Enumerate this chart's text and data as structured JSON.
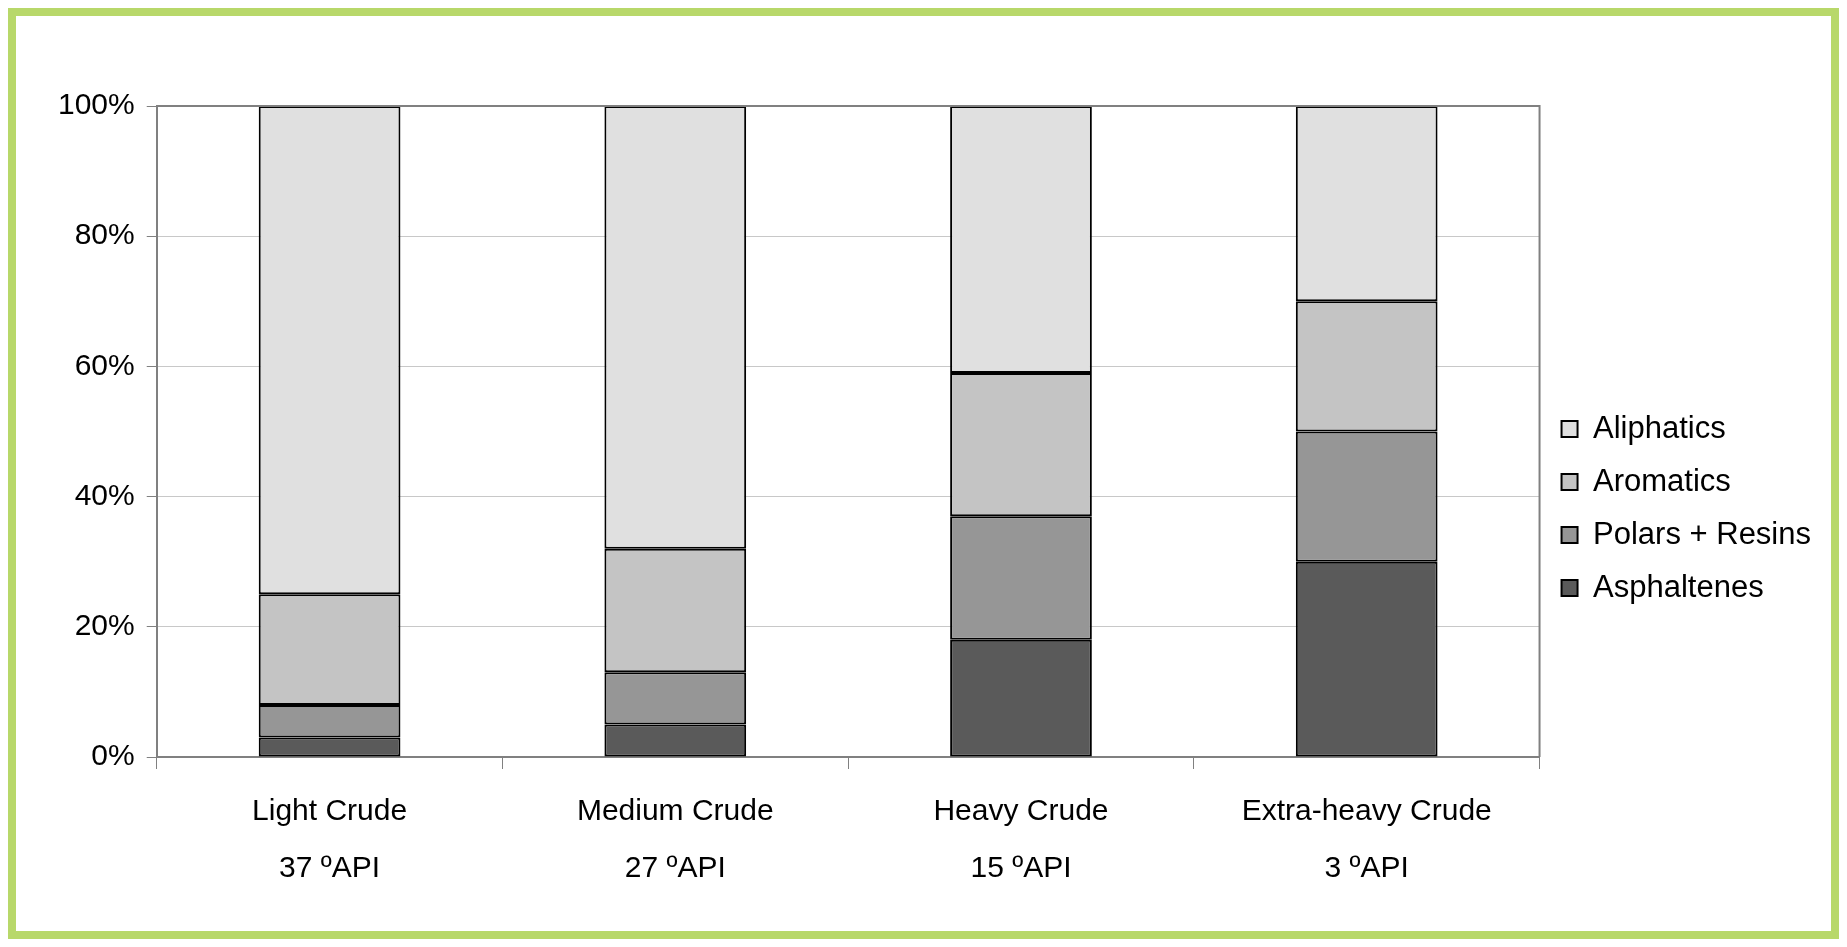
{
  "chart_data": {
    "type": "bar",
    "stacked": true,
    "categories": [
      "Light Crude\n37 ºAPI",
      "Medium Crude\n27 ºAPI",
      "Heavy Crude\n15 ºAPI",
      "Extra-heavy Crude\n3 ºAPI"
    ],
    "series": [
      {
        "name": "Asphaltenes",
        "color": "#5a5a5a",
        "values": [
          3,
          5,
          18,
          30
        ]
      },
      {
        "name": "Polars + Resins",
        "color": "#969696",
        "values": [
          5,
          8,
          19,
          20
        ]
      },
      {
        "name": "Aromatics",
        "color": "#c4c4c4",
        "values": [
          17,
          19,
          22,
          20
        ]
      },
      {
        "name": "Aliphatics",
        "color": "#e0e0e0",
        "values": [
          75,
          68,
          41,
          30
        ]
      }
    ],
    "ylim": [
      0,
      100
    ],
    "yticks": [
      {
        "value": 0,
        "label": "0%"
      },
      {
        "value": 20,
        "label": "20%"
      },
      {
        "value": 40,
        "label": "40%"
      },
      {
        "value": 60,
        "label": "60%"
      },
      {
        "value": 80,
        "label": "80%"
      },
      {
        "value": 100,
        "label": "100%"
      }
    ],
    "grid": "y",
    "legend": "right"
  }
}
